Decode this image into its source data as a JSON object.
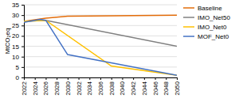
{
  "chart_data": {
    "type": "line",
    "ylabel": "MtCO₂eq",
    "xlim": [
      2022,
      2050
    ],
    "ylim": [
      0,
      35
    ],
    "yticks": [
      0,
      5,
      10,
      15,
      20,
      25,
      30,
      35
    ],
    "xticks": [
      2022,
      2024,
      2026,
      2028,
      2030,
      2032,
      2034,
      2036,
      2038,
      2040,
      2042,
      2044,
      2046,
      2048,
      2050
    ],
    "grid": true,
    "legend": "right",
    "series": [
      {
        "name": "Baseline",
        "color": "#E36C09",
        "x": [
          2022,
          2026,
          2028,
          2030,
          2050
        ],
        "values": [
          27.0,
          28.5,
          29.0,
          29.5,
          30.0
        ]
      },
      {
        "name": "IMO_Net50",
        "color": "#808080",
        "x": [
          2022,
          2026,
          2050
        ],
        "values": [
          27.0,
          27.5,
          15.0
        ]
      },
      {
        "name": "IMO_Net0",
        "color": "#FFC000",
        "x": [
          2022,
          2026,
          2038,
          2050
        ],
        "values": [
          27.0,
          27.5,
          5.5,
          1.0
        ]
      },
      {
        "name": "MOF_Net0",
        "color": "#4472C4",
        "x": [
          2022,
          2025,
          2026,
          2030,
          2050
        ],
        "values": [
          26.5,
          28.0,
          27.5,
          11.0,
          1.0
        ]
      }
    ]
  }
}
